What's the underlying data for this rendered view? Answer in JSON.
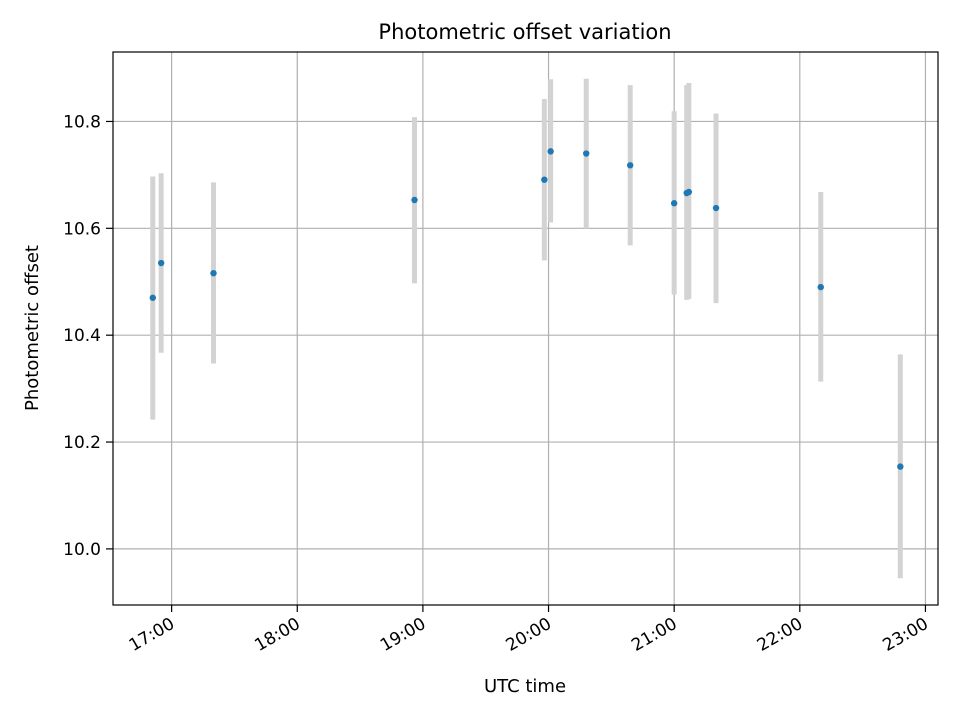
{
  "chart_data": {
    "type": "scatter",
    "title": "Photometric offset variation",
    "xlabel": "UTC time",
    "ylabel": "Photometric offset",
    "x_ticks": [
      "17:00",
      "18:00",
      "19:00",
      "20:00",
      "21:00",
      "22:00",
      "23:00"
    ],
    "y_ticks": [
      "10.0",
      "10.2",
      "10.4",
      "10.6",
      "10.8"
    ],
    "x_range": [
      "16:32",
      "23:06"
    ],
    "ylim": [
      9.895,
      10.93
    ],
    "grid": true,
    "legend": "none",
    "colors": {
      "point": "#1f77b4",
      "errorbar": "#d3d3d3",
      "grid": "#b0b0b0"
    },
    "series": [
      {
        "points": [
          {
            "x": "16:51",
            "y": 10.47,
            "y_low": 10.242,
            "y_high": 10.697
          },
          {
            "x": "16:55",
            "y": 10.535,
            "y_low": 10.367,
            "y_high": 10.703
          },
          {
            "x": "17:20",
            "y": 10.516,
            "y_low": 10.347,
            "y_high": 10.686
          },
          {
            "x": "18:56",
            "y": 10.653,
            "y_low": 10.497,
            "y_high": 10.808
          },
          {
            "x": "19:58",
            "y": 10.691,
            "y_low": 10.54,
            "y_high": 10.842
          },
          {
            "x": "20:01",
            "y": 10.744,
            "y_low": 10.611,
            "y_high": 10.879
          },
          {
            "x": "20:18",
            "y": 10.74,
            "y_low": 10.6,
            "y_high": 10.88
          },
          {
            "x": "20:39",
            "y": 10.718,
            "y_low": 10.568,
            "y_high": 10.868
          },
          {
            "x": "21:00",
            "y": 10.647,
            "y_low": 10.476,
            "y_high": 10.819
          },
          {
            "x": "21:06",
            "y": 10.666,
            "y_low": 10.466,
            "y_high": 10.868
          },
          {
            "x": "21:07",
            "y": 10.668,
            "y_low": 10.468,
            "y_high": 10.872
          },
          {
            "x": "21:20",
            "y": 10.638,
            "y_low": 10.46,
            "y_high": 10.815
          },
          {
            "x": "22:10",
            "y": 10.49,
            "y_low": 10.313,
            "y_high": 10.668
          },
          {
            "x": "22:48",
            "y": 10.154,
            "y_low": 9.945,
            "y_high": 10.364
          }
        ]
      }
    ]
  }
}
